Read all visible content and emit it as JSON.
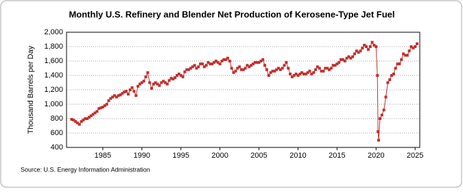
{
  "chart_data": {
    "type": "line",
    "title": "Monthly U.S. Refinery and Blender Net Production of Kerosene-Type Jet Fuel",
    "y_label": "Thousand Barrels per Day",
    "source": "Source: U.S. Energy Information Administration",
    "x": [
      1981,
      1981.25,
      1981.5,
      1981.75,
      1982,
      1982.25,
      1982.5,
      1982.75,
      1983,
      1983.25,
      1983.5,
      1983.75,
      1984,
      1984.25,
      1984.5,
      1984.75,
      1985,
      1985.25,
      1985.5,
      1985.75,
      1986,
      1986.25,
      1986.5,
      1986.75,
      1987,
      1987.25,
      1987.5,
      1987.75,
      1988,
      1988.25,
      1988.5,
      1988.75,
      1989,
      1989.25,
      1989.5,
      1989.75,
      1990,
      1990.25,
      1990.5,
      1990.75,
      1991,
      1991.25,
      1991.5,
      1991.75,
      1992,
      1992.25,
      1992.5,
      1992.75,
      1993,
      1993.25,
      1993.5,
      1993.75,
      1994,
      1994.25,
      1994.5,
      1994.75,
      1995,
      1995.25,
      1995.5,
      1995.75,
      1996,
      1996.25,
      1996.5,
      1996.75,
      1997,
      1997.25,
      1997.5,
      1997.75,
      1998,
      1998.25,
      1998.5,
      1998.75,
      1999,
      1999.25,
      1999.5,
      1999.75,
      2000,
      2000.25,
      2000.5,
      2000.75,
      2001,
      2001.25,
      2001.5,
      2001.75,
      2002,
      2002.25,
      2002.5,
      2002.75,
      2003,
      2003.25,
      2003.5,
      2003.75,
      2004,
      2004.25,
      2004.5,
      2004.75,
      2005,
      2005.25,
      2005.5,
      2005.75,
      2006,
      2006.25,
      2006.5,
      2006.75,
      2007,
      2007.25,
      2007.5,
      2007.75,
      2008,
      2008.25,
      2008.5,
      2008.75,
      2009,
      2009.25,
      2009.5,
      2009.75,
      2010,
      2010.25,
      2010.5,
      2010.75,
      2011,
      2011.25,
      2011.5,
      2011.75,
      2012,
      2012.25,
      2012.5,
      2012.75,
      2013,
      2013.25,
      2013.5,
      2013.75,
      2014,
      2014.25,
      2014.5,
      2014.75,
      2015,
      2015.25,
      2015.5,
      2015.75,
      2016,
      2016.25,
      2016.5,
      2016.75,
      2017,
      2017.25,
      2017.5,
      2017.75,
      2018,
      2018.25,
      2018.5,
      2018.75,
      2019,
      2019.25,
      2019.5,
      2019.75,
      2020,
      2020.17,
      2020.25,
      2020.33,
      2020.5,
      2020.75,
      2021,
      2021.25,
      2021.5,
      2021.75,
      2022,
      2022.25,
      2022.5,
      2022.75,
      2023,
      2023.25,
      2023.5,
      2023.75,
      2024,
      2024.25,
      2024.5,
      2024.75,
      2025,
      2025.25
    ],
    "series": [
      {
        "name": "Kerosene-Type Jet Fuel",
        "color": "#c0302e",
        "values": [
          790,
          780,
          760,
          740,
          720,
          760,
          780,
          800,
          800,
          820,
          840,
          860,
          880,
          900,
          940,
          950,
          960,
          980,
          1000,
          1050,
          1080,
          1100,
          1120,
          1100,
          1120,
          1130,
          1150,
          1170,
          1180,
          1140,
          1200,
          1230,
          1180,
          1120,
          1250,
          1280,
          1300,
          1320,
          1380,
          1440,
          1300,
          1220,
          1280,
          1300,
          1280,
          1260,
          1300,
          1320,
          1300,
          1280,
          1330,
          1360,
          1350,
          1370,
          1400,
          1420,
          1400,
          1380,
          1450,
          1480,
          1480,
          1500,
          1520,
          1540,
          1500,
          1520,
          1560,
          1560,
          1520,
          1540,
          1580,
          1560,
          1560,
          1580,
          1600,
          1580,
          1560,
          1600,
          1620,
          1620,
          1640,
          1600,
          1500,
          1440,
          1460,
          1500,
          1520,
          1480,
          1480,
          1500,
          1540,
          1520,
          1540,
          1560,
          1580,
          1580,
          1580,
          1600,
          1620,
          1540,
          1480,
          1400,
          1440,
          1460,
          1460,
          1480,
          1500,
          1480,
          1500,
          1540,
          1580,
          1500,
          1420,
          1380,
          1400,
          1420,
          1400,
          1420,
          1440,
          1420,
          1420,
          1440,
          1460,
          1420,
          1440,
          1480,
          1520,
          1500,
          1460,
          1460,
          1500,
          1500,
          1480,
          1500,
          1540,
          1540,
          1560,
          1580,
          1620,
          1620,
          1600,
          1640,
          1660,
          1640,
          1660,
          1700,
          1740,
          1720,
          1740,
          1780,
          1820,
          1800,
          1760,
          1800,
          1860,
          1820,
          1800,
          1400,
          620,
          500,
          800,
          850,
          920,
          1100,
          1300,
          1340,
          1400,
          1420,
          1500,
          1560,
          1560,
          1620,
          1700,
          1680,
          1680,
          1740,
          1800,
          1780,
          1800,
          1840
        ]
      }
    ],
    "xlim": [
      1980.35,
      2025.6
    ],
    "xticks": [
      1985,
      1990,
      1995,
      2000,
      2005,
      2010,
      2015,
      2020,
      2025
    ],
    "ylim": [
      400,
      2000
    ],
    "yticks": [
      {
        "value": 400,
        "label": "400"
      },
      {
        "value": 600,
        "label": "600"
      },
      {
        "value": 800,
        "label": "800"
      },
      {
        "value": 1000,
        "label": "1,000"
      },
      {
        "value": 1200,
        "label": "1,200"
      },
      {
        "value": 1400,
        "label": "1,400"
      },
      {
        "value": 1600,
        "label": "1,600"
      },
      {
        "value": 1800,
        "label": "1,800"
      },
      {
        "value": 2000,
        "label": "2,000"
      }
    ],
    "grid": true
  }
}
